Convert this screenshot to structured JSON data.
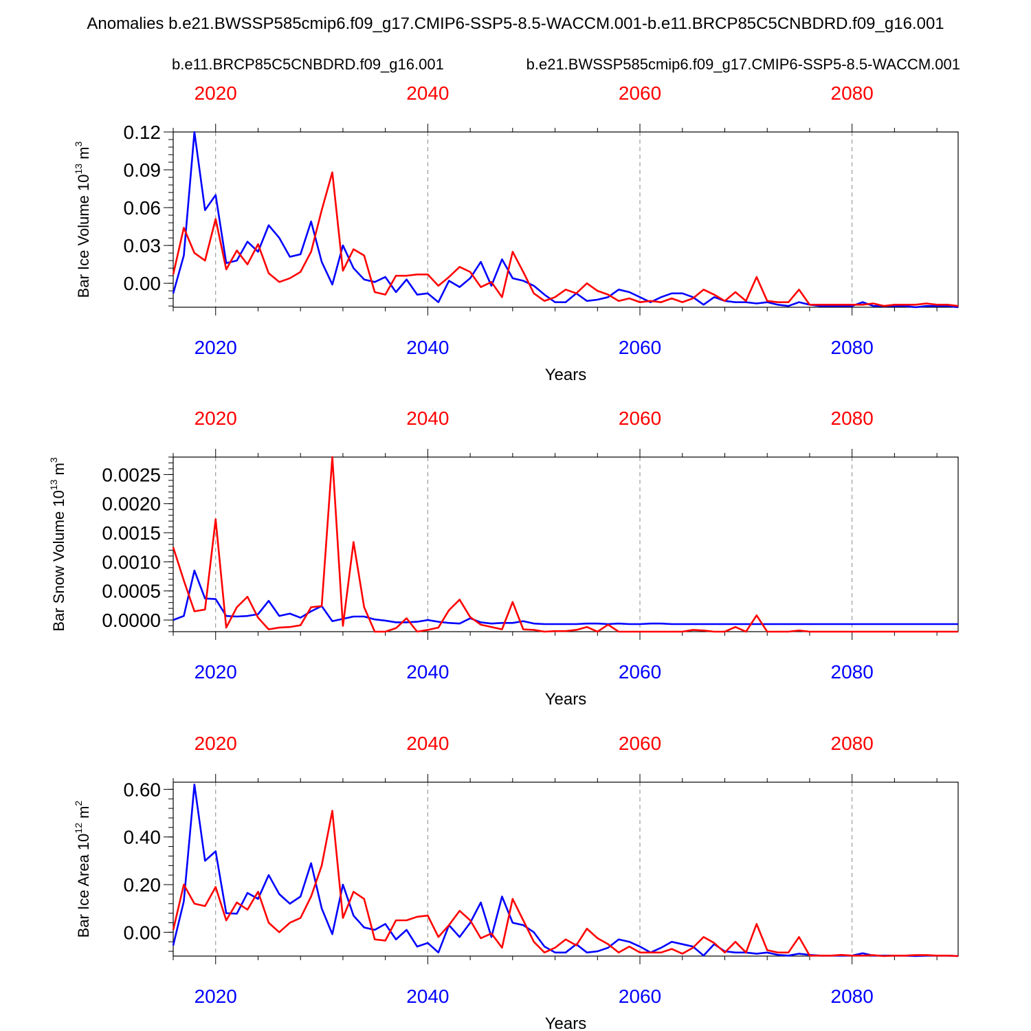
{
  "figure_title": "Anomalies b.e21.BWSSP585cmip6.f09_g17.CMIP6-SSP5-8.5-WACCM.001-b.e11.BRCP85C5CNBDRD.f09_g16.001",
  "legend": {
    "red_label": "b.e11.BRCP85C5CNBDRD.f09_g16.001",
    "blue_label": "b.e21.BWSSP585cmip6.f09_g17.CMIP6-SSP5-8.5-WACCM.001"
  },
  "colors": {
    "red": "#ff0000",
    "blue": "#0000ff",
    "axis": "#000000",
    "grid": "#888888"
  },
  "chart_data": [
    {
      "type": "line",
      "ylabel_main": "Bar Ice Volume 10",
      "ylabel_exp": "13",
      "ylabel_unit": " m",
      "ylabel_unit_exp": "3",
      "xlabel": "Years",
      "xlim": [
        2016,
        2090
      ],
      "ylim": [
        -0.019,
        0.12
      ],
      "yticks": [
        0.0,
        0.03,
        0.06,
        0.09,
        0.12
      ],
      "ytick_labels": [
        "0.00",
        "0.03",
        "0.06",
        "0.09",
        "0.12"
      ],
      "yminor_step": 0.006,
      "xticks": [
        2020,
        2040,
        2060,
        2080
      ],
      "xtick_labels": [
        "2020",
        "2040",
        "2060",
        "2080"
      ],
      "x_start": 2016,
      "series": [
        {
          "name": "blue",
          "values": [
            -0.008,
            0.022,
            0.12,
            0.058,
            0.07,
            0.016,
            0.018,
            0.033,
            0.025,
            0.046,
            0.036,
            0.021,
            0.023,
            0.049,
            0.017,
            -0.001,
            0.03,
            0.012,
            0.003,
            0.001,
            0.005,
            -0.007,
            0.003,
            -0.009,
            -0.008,
            -0.015,
            0.002,
            -0.003,
            0.004,
            0.017,
            -0.002,
            0.019,
            0.004,
            0.002,
            -0.002,
            -0.009,
            -0.015,
            -0.015,
            -0.008,
            -0.014,
            -0.013,
            -0.011,
            -0.005,
            -0.007,
            -0.011,
            -0.015,
            -0.011,
            -0.008,
            -0.008,
            -0.011,
            -0.017,
            -0.011,
            -0.014,
            -0.015,
            -0.015,
            -0.016,
            -0.015,
            -0.017,
            -0.018,
            -0.015,
            -0.017,
            -0.018,
            -0.018,
            -0.018,
            -0.018,
            -0.015,
            -0.018,
            -0.018,
            -0.018,
            -0.018,
            -0.019,
            -0.018,
            -0.018,
            -0.018,
            -0.019
          ]
        },
        {
          "name": "red",
          "values": [
            0.007,
            0.044,
            0.024,
            0.018,
            0.051,
            0.011,
            0.026,
            0.015,
            0.031,
            0.008,
            0.001,
            0.004,
            0.009,
            0.025,
            0.058,
            0.088,
            0.01,
            0.027,
            0.022,
            -0.007,
            -0.009,
            0.006,
            0.006,
            0.007,
            0.007,
            -0.002,
            0.005,
            0.013,
            0.009,
            -0.003,
            0.001,
            -0.011,
            0.025,
            0.009,
            -0.008,
            -0.014,
            -0.011,
            -0.005,
            -0.008,
            0.0,
            -0.006,
            -0.009,
            -0.014,
            -0.012,
            -0.015,
            -0.014,
            -0.015,
            -0.012,
            -0.015,
            -0.012,
            -0.005,
            -0.009,
            -0.014,
            -0.007,
            -0.014,
            0.005,
            -0.014,
            -0.015,
            -0.015,
            -0.005,
            -0.017,
            -0.017,
            -0.017,
            -0.017,
            -0.017,
            -0.017,
            -0.016,
            -0.018,
            -0.017,
            -0.017,
            -0.017,
            -0.016,
            -0.017,
            -0.017,
            -0.018
          ]
        }
      ]
    },
    {
      "type": "line",
      "ylabel_main": "Bar Snow Volume 10",
      "ylabel_exp": "13",
      "ylabel_unit": " m",
      "ylabel_unit_exp": "3",
      "xlabel": "Years",
      "xlim": [
        2016,
        2090
      ],
      "ylim": [
        -0.0002,
        0.0028
      ],
      "yticks": [
        0.0,
        0.0005,
        0.001,
        0.0015,
        0.002,
        0.0025
      ],
      "ytick_labels": [
        "0.0000",
        "0.0005",
        "0.0010",
        "0.0015",
        "0.0020",
        "0.0025"
      ],
      "yminor_step": 0.0001,
      "xticks": [
        2020,
        2040,
        2060,
        2080
      ],
      "xtick_labels": [
        "2020",
        "2040",
        "2060",
        "2080"
      ],
      "x_start": 2016,
      "series": [
        {
          "name": "blue",
          "values": [
            0.0,
            7e-05,
            0.00085,
            0.00037,
            0.00036,
            7e-05,
            6e-05,
            7e-05,
            0.0001,
            0.00033,
            7e-05,
            0.00011,
            4e-05,
            0.00015,
            0.00024,
            -2e-05,
            2e-05,
            6e-05,
            6e-05,
            1e-05,
            -1e-05,
            -4e-05,
            -4e-05,
            -3e-05,
            0.0,
            -3e-05,
            -5e-05,
            -6e-05,
            3e-05,
            -4e-05,
            -6e-05,
            -5e-05,
            -5e-05,
            -2e-05,
            -6e-05,
            -7e-05,
            -7e-05,
            -7e-05,
            -7e-05,
            -6e-05,
            -6e-05,
            -7e-05,
            -6e-05,
            -7e-05,
            -7e-05,
            -6e-05,
            -6e-05,
            -7e-05,
            -7e-05,
            -7e-05,
            -7e-05,
            -7e-05,
            -7e-05,
            -7e-05,
            -7e-05,
            -7e-05,
            -7e-05,
            -7e-05,
            -7e-05,
            -7e-05,
            -7e-05,
            -7e-05,
            -7e-05,
            -7e-05,
            -7e-05,
            -7e-05,
            -7e-05,
            -7e-05,
            -7e-05,
            -7e-05,
            -7e-05,
            -7e-05,
            -7e-05,
            -7e-05,
            -7e-05
          ]
        },
        {
          "name": "red",
          "values": [
            0.00125,
            0.00068,
            0.00015,
            0.00018,
            0.00173,
            -0.00013,
            0.00022,
            0.0004,
            4e-05,
            -0.00016,
            -0.00013,
            -0.00012,
            -9e-05,
            0.00022,
            0.00024,
            0.0028,
            -0.0001,
            0.00134,
            0.00022,
            -0.0002,
            -0.0002,
            -0.00014,
            3e-05,
            -0.0002,
            -0.00017,
            -0.00013,
            0.00017,
            0.00035,
            5e-05,
            -8e-05,
            -0.00012,
            -0.00016,
            0.00031,
            -0.00016,
            -0.00017,
            -0.0002,
            -0.00019,
            -0.00019,
            -0.00017,
            -0.00012,
            -0.0002,
            -8e-05,
            -0.0002,
            -0.0002,
            -0.0002,
            -0.0002,
            -0.0002,
            -0.0002,
            -0.0002,
            -0.00017,
            -0.00018,
            -0.0002,
            -0.0002,
            -0.00012,
            -0.0002,
            8e-05,
            -0.0002,
            -0.0002,
            -0.0002,
            -0.00018,
            -0.0002,
            -0.0002,
            -0.0002,
            -0.0002,
            -0.0002,
            -0.0002,
            -0.0002,
            -0.0002,
            -0.0002,
            -0.0002,
            -0.0002,
            -0.0002,
            -0.0002,
            -0.0002,
            -0.0002
          ]
        }
      ]
    },
    {
      "type": "line",
      "ylabel_main": "Bar Ice Area 10",
      "ylabel_exp": "12",
      "ylabel_unit": " m",
      "ylabel_unit_exp": "2",
      "xlabel": "Years",
      "xlim": [
        2016,
        2090
      ],
      "ylim": [
        -0.1,
        0.63
      ],
      "yticks": [
        0.0,
        0.2,
        0.4,
        0.6
      ],
      "ytick_labels": [
        "0.00",
        "0.20",
        "0.40",
        "0.60"
      ],
      "yminor_step": 0.04,
      "xticks": [
        2020,
        2040,
        2060,
        2080
      ],
      "xtick_labels": [
        "2020",
        "2040",
        "2060",
        "2080"
      ],
      "x_start": 2016,
      "series": [
        {
          "name": "blue",
          "values": [
            -0.055,
            0.13,
            0.62,
            0.3,
            0.34,
            0.08,
            0.078,
            0.165,
            0.14,
            0.24,
            0.16,
            0.12,
            0.15,
            0.29,
            0.1,
            -0.008,
            0.2,
            0.07,
            0.02,
            0.01,
            0.035,
            -0.03,
            0.01,
            -0.06,
            -0.045,
            -0.085,
            0.03,
            -0.02,
            0.04,
            0.125,
            -0.02,
            0.15,
            0.04,
            0.03,
            0.0,
            -0.06,
            -0.085,
            -0.085,
            -0.05,
            -0.085,
            -0.08,
            -0.065,
            -0.03,
            -0.04,
            -0.06,
            -0.085,
            -0.065,
            -0.04,
            -0.05,
            -0.06,
            -0.098,
            -0.05,
            -0.08,
            -0.085,
            -0.085,
            -0.09,
            -0.085,
            -0.095,
            -0.098,
            -0.09,
            -0.095,
            -0.098,
            -0.098,
            -0.098,
            -0.098,
            -0.088,
            -0.098,
            -0.098,
            -0.098,
            -0.098,
            -0.1,
            -0.098,
            -0.098,
            -0.098,
            -0.1
          ]
        },
        {
          "name": "red",
          "values": [
            0.01,
            0.2,
            0.12,
            0.11,
            0.19,
            0.05,
            0.125,
            0.095,
            0.17,
            0.04,
            0.0,
            0.04,
            0.06,
            0.15,
            0.28,
            0.51,
            0.06,
            0.17,
            0.14,
            -0.03,
            -0.035,
            0.05,
            0.05,
            0.065,
            0.07,
            -0.02,
            0.03,
            0.09,
            0.05,
            -0.025,
            -0.005,
            -0.065,
            0.14,
            0.05,
            -0.04,
            -0.085,
            -0.065,
            -0.03,
            -0.055,
            0.015,
            -0.025,
            -0.05,
            -0.085,
            -0.06,
            -0.085,
            -0.085,
            -0.085,
            -0.07,
            -0.09,
            -0.065,
            -0.02,
            -0.045,
            -0.085,
            -0.04,
            -0.085,
            0.035,
            -0.075,
            -0.085,
            -0.085,
            -0.02,
            -0.098,
            -0.098,
            -0.098,
            -0.095,
            -0.098,
            -0.098,
            -0.096,
            -0.1,
            -0.098,
            -0.098,
            -0.096,
            -0.096,
            -0.098,
            -0.098,
            -0.1
          ]
        }
      ]
    }
  ]
}
